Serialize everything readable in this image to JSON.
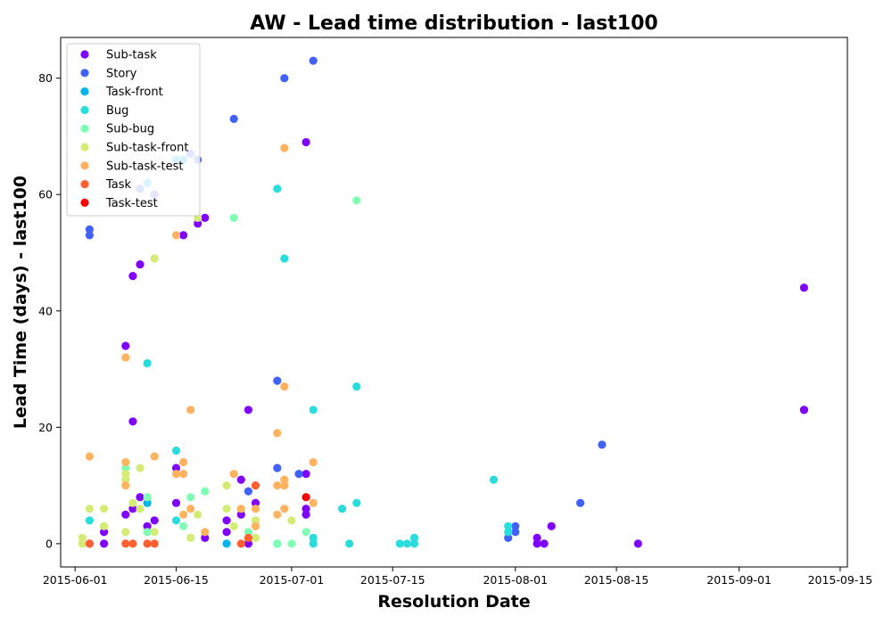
{
  "chart_data": {
    "type": "scatter",
    "title": "AW - Lead time distribution - last100",
    "xlabel": "Resolution Date",
    "ylabel": "Lead Time (days) - last100",
    "x_type": "date",
    "xlim": [
      "2015-05-30",
      "2015-09-16"
    ],
    "ylim": [
      -4,
      87
    ],
    "x_ticks": [
      "2015-06-01",
      "2015-06-15",
      "2015-07-01",
      "2015-07-15",
      "2015-08-01",
      "2015-08-15",
      "2015-09-01",
      "2015-09-15"
    ],
    "y_ticks": [
      0,
      20,
      40,
      60,
      80
    ],
    "grid": false,
    "legend_position": "top-left",
    "series": [
      {
        "name": "Sub-task",
        "color": "#8000ff",
        "points": [
          [
            "2015-06-03",
            0
          ],
          [
            "2015-06-05",
            2
          ],
          [
            "2015-06-05",
            0
          ],
          [
            "2015-06-08",
            34
          ],
          [
            "2015-06-08",
            5
          ],
          [
            "2015-06-09",
            46
          ],
          [
            "2015-06-09",
            21
          ],
          [
            "2015-06-09",
            6
          ],
          [
            "2015-06-10",
            48
          ],
          [
            "2015-06-10",
            8
          ],
          [
            "2015-06-11",
            3
          ],
          [
            "2015-06-12",
            4
          ],
          [
            "2015-06-15",
            13
          ],
          [
            "2015-06-15",
            7
          ],
          [
            "2015-06-16",
            53
          ],
          [
            "2015-06-18",
            55
          ],
          [
            "2015-06-19",
            56
          ],
          [
            "2015-06-19",
            1
          ],
          [
            "2015-06-22",
            4
          ],
          [
            "2015-06-22",
            2
          ],
          [
            "2015-06-24",
            11
          ],
          [
            "2015-06-24",
            5
          ],
          [
            "2015-06-25",
            23
          ],
          [
            "2015-06-26",
            7
          ],
          [
            "2015-06-25",
            0
          ],
          [
            "2015-07-03",
            69
          ],
          [
            "2015-07-03",
            12
          ],
          [
            "2015-07-03",
            6
          ],
          [
            "2015-07-03",
            5
          ],
          [
            "2015-08-04",
            1
          ],
          [
            "2015-08-04",
            0
          ],
          [
            "2015-08-05",
            0
          ],
          [
            "2015-08-06",
            3
          ],
          [
            "2015-08-18",
            0
          ],
          [
            "2015-09-10",
            44
          ],
          [
            "2015-09-10",
            23
          ],
          [
            "2015-09-10",
            23
          ]
        ]
      },
      {
        "name": "Story",
        "color": "#4062fa",
        "points": [
          [
            "2015-06-03",
            54
          ],
          [
            "2015-06-03",
            53
          ],
          [
            "2015-06-10",
            61
          ],
          [
            "2015-06-12",
            60
          ],
          [
            "2015-06-17",
            67
          ],
          [
            "2015-06-18",
            66
          ],
          [
            "2015-06-23",
            73
          ],
          [
            "2015-06-25",
            9
          ],
          [
            "2015-06-30",
            80
          ],
          [
            "2015-06-29",
            28
          ],
          [
            "2015-06-29",
            13
          ],
          [
            "2015-07-02",
            12
          ],
          [
            "2015-07-04",
            83
          ],
          [
            "2015-07-31",
            1
          ],
          [
            "2015-08-01",
            3
          ],
          [
            "2015-08-01",
            2
          ],
          [
            "2015-08-10",
            7
          ],
          [
            "2015-08-13",
            17
          ]
        ]
      },
      {
        "name": "Task-front",
        "color": "#00b5eb",
        "points": [
          [
            "2015-06-11",
            62
          ],
          [
            "2015-06-11",
            7
          ],
          [
            "2015-06-15",
            66
          ],
          [
            "2015-06-16",
            66
          ],
          [
            "2015-06-22",
            0
          ],
          [
            "2015-06-29",
            0
          ]
        ]
      },
      {
        "name": "Bug",
        "color": "#2adddd",
        "points": [
          [
            "2015-06-03",
            4
          ],
          [
            "2015-06-11",
            31
          ],
          [
            "2015-06-15",
            16
          ],
          [
            "2015-06-15",
            4
          ],
          [
            "2015-06-29",
            61
          ],
          [
            "2015-06-30",
            49
          ],
          [
            "2015-07-04",
            23
          ],
          [
            "2015-07-04",
            1
          ],
          [
            "2015-07-04",
            0
          ],
          [
            "2015-07-08",
            6
          ],
          [
            "2015-07-09",
            0
          ],
          [
            "2015-07-10",
            27
          ],
          [
            "2015-07-10",
            7
          ],
          [
            "2015-07-16",
            0
          ],
          [
            "2015-07-17",
            0
          ],
          [
            "2015-07-18",
            1
          ],
          [
            "2015-07-18",
            0
          ],
          [
            "2015-07-29",
            11
          ],
          [
            "2015-07-31",
            3
          ],
          [
            "2015-07-31",
            2
          ]
        ]
      },
      {
        "name": "Sub-bug",
        "color": "#80ffb4",
        "points": [
          [
            "2015-06-08",
            13
          ],
          [
            "2015-06-11",
            8
          ],
          [
            "2015-06-11",
            2
          ],
          [
            "2015-06-16",
            3
          ],
          [
            "2015-06-17",
            8
          ],
          [
            "2015-06-19",
            9
          ],
          [
            "2015-06-23",
            56
          ],
          [
            "2015-06-25",
            2
          ],
          [
            "2015-06-29",
            0
          ],
          [
            "2015-07-01",
            0
          ],
          [
            "2015-07-03",
            2
          ],
          [
            "2015-07-10",
            59
          ]
        ]
      },
      {
        "name": "Sub-task-front",
        "color": "#d4ec76",
        "points": [
          [
            "2015-06-02",
            1
          ],
          [
            "2015-06-02",
            0
          ],
          [
            "2015-06-03",
            6
          ],
          [
            "2015-06-05",
            6
          ],
          [
            "2015-06-05",
            3
          ],
          [
            "2015-06-08",
            12
          ],
          [
            "2015-06-08",
            11
          ],
          [
            "2015-06-08",
            2
          ],
          [
            "2015-06-09",
            7
          ],
          [
            "2015-06-10",
            13
          ],
          [
            "2015-06-10",
            6
          ],
          [
            "2015-06-12",
            49
          ],
          [
            "2015-06-12",
            2
          ],
          [
            "2015-06-17",
            1
          ],
          [
            "2015-06-18",
            56
          ],
          [
            "2015-06-18",
            5
          ],
          [
            "2015-06-22",
            10
          ],
          [
            "2015-06-22",
            6
          ],
          [
            "2015-06-23",
            3
          ],
          [
            "2015-06-26",
            4
          ],
          [
            "2015-06-26",
            1
          ],
          [
            "2015-07-01",
            4
          ]
        ]
      },
      {
        "name": "Sub-task-test",
        "color": "#ffb360",
        "points": [
          [
            "2015-06-03",
            15
          ],
          [
            "2015-06-08",
            32
          ],
          [
            "2015-06-08",
            14
          ],
          [
            "2015-06-08",
            10
          ],
          [
            "2015-06-12",
            15
          ],
          [
            "2015-06-15",
            53
          ],
          [
            "2015-06-15",
            12
          ],
          [
            "2015-06-16",
            14
          ],
          [
            "2015-06-16",
            12
          ],
          [
            "2015-06-17",
            23
          ],
          [
            "2015-06-17",
            6
          ],
          [
            "2015-06-16",
            5
          ],
          [
            "2015-06-19",
            2
          ],
          [
            "2015-06-23",
            12
          ],
          [
            "2015-06-24",
            6
          ],
          [
            "2015-06-26",
            6
          ],
          [
            "2015-06-26",
            3
          ],
          [
            "2015-06-29",
            19
          ],
          [
            "2015-06-29",
            10
          ],
          [
            "2015-06-29",
            5
          ],
          [
            "2015-06-30",
            68
          ],
          [
            "2015-06-30",
            27
          ],
          [
            "2015-06-30",
            11
          ],
          [
            "2015-06-30",
            10
          ],
          [
            "2015-06-30",
            6
          ],
          [
            "2015-07-04",
            14
          ],
          [
            "2015-07-04",
            7
          ]
        ]
      },
      {
        "name": "Task",
        "color": "#ff6030",
        "points": [
          [
            "2015-06-03",
            0
          ],
          [
            "2015-06-08",
            0
          ],
          [
            "2015-06-09",
            0
          ],
          [
            "2015-06-11",
            0
          ],
          [
            "2015-06-12",
            0
          ],
          [
            "2015-06-24",
            0
          ],
          [
            "2015-06-26",
            10
          ],
          [
            "2015-06-25",
            1
          ]
        ]
      },
      {
        "name": "Task-test",
        "color": "#ff0000",
        "points": [
          [
            "2015-07-03",
            8
          ]
        ]
      }
    ]
  }
}
